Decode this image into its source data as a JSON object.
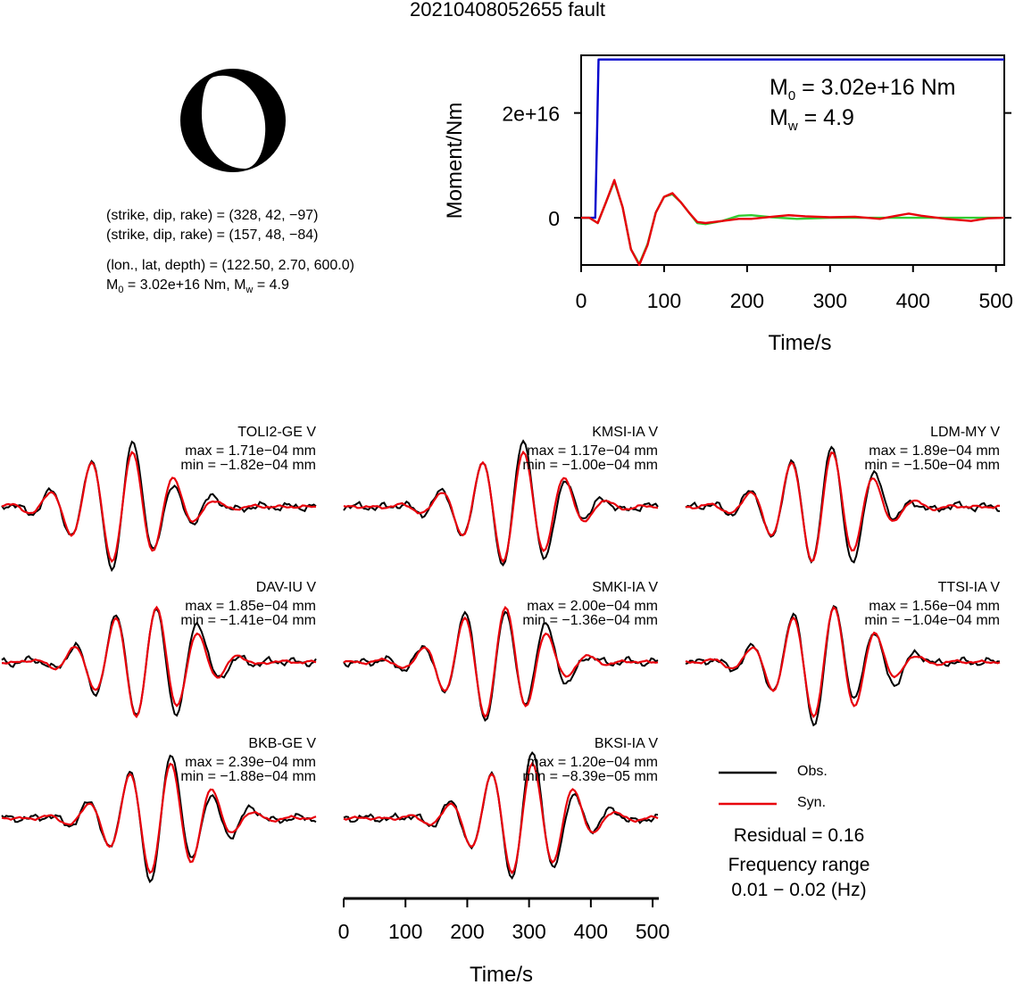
{
  "title": "20210408052655 fault",
  "solution": {
    "nodal1": "(strike, dip, rake) = (328, 42, −97)",
    "nodal2": "(strike, dip, rake) = (157, 48, −84)",
    "location": "(lon., lat, depth) = (122.50, 2.70, 600.0)",
    "moment_prefix": "M",
    "moment_sub": "0",
    "moment_mid": " = 3.02e+16 Nm, M",
    "mw_sub": "w",
    "mw_suffix": " = 4.9"
  },
  "moment_plot": {
    "m0_prefix": "M",
    "m0_sub": "0",
    "m0_value": " = 3.02e+16 Nm",
    "mw_prefix": "M",
    "mw_sub": "w",
    "mw_value": " = 4.9"
  },
  "legend": {
    "obs": "Obs.",
    "syn": "Syn.",
    "obs_color": "#000000",
    "syn_color": "#e8000b"
  },
  "residual": "Residual = 0.16",
  "freq_title": "Frequency range",
  "freq_value": "0.01 − 0.02 (Hz)",
  "chart_data": [
    {
      "type": "line",
      "id": "moment-rate",
      "title": "",
      "xlabel": "Time/s",
      "ylabel": "Moment/Nm",
      "xlim": [
        0,
        510
      ],
      "ylim": [
        -9000000000000000.0,
        3.1e+16
      ],
      "xticks": [
        0,
        100,
        200,
        300,
        400,
        500
      ],
      "yticks": [
        {
          "value": 0,
          "label": "0"
        },
        {
          "value": 2e+16,
          "label": "2e+16"
        }
      ],
      "series": [
        {
          "color": "#0000cc",
          "x": [
            0,
            17,
            19,
            21,
            510
          ],
          "y": [
            0,
            0,
            1.5e+16,
            3.02e+16,
            3.02e+16
          ]
        },
        {
          "color": "#33cc33",
          "x": [
            0,
            10,
            20,
            30,
            40,
            50,
            60,
            70,
            80,
            90,
            100,
            110,
            120,
            130,
            140,
            150,
            170,
            190,
            205,
            230,
            260,
            300,
            350,
            400,
            450,
            500,
            510
          ],
          "y": [
            0,
            0,
            -1000000000000000.0,
            3000000000000000.0,
            7000000000000000.0,
            2000000000000000.0,
            -6000000000000000.0,
            -8800000000000000.0,
            -5000000000000000.0,
            1000000000000000.0,
            4000000000000000.0,
            4500000000000000.0,
            3000000000000000.0,
            1000000000000000.0,
            -1000000000000000.0,
            -1200000000000000.0,
            -600000000000000.0,
            400000000000000.0,
            500000000000000.0,
            100000000000000.0,
            -200000000000000.0,
            0,
            0,
            0,
            0,
            0,
            0
          ]
        },
        {
          "color": "#e8000b",
          "x": [
            0,
            10,
            20,
            30,
            40,
            50,
            60,
            70,
            80,
            90,
            100,
            110,
            120,
            130,
            140,
            150,
            170,
            190,
            205,
            230,
            250,
            270,
            300,
            330,
            360,
            380,
            395,
            410,
            440,
            470,
            490,
            510
          ],
          "y": [
            0,
            0,
            -1000000000000000.0,
            3000000000000000.0,
            7200000000000000.0,
            2000000000000000.0,
            -6000000000000000.0,
            -9000000000000000.0,
            -5200000000000000.0,
            1000000000000000.0,
            4000000000000000.0,
            4700000000000000.0,
            3000000000000000.0,
            1000000000000000.0,
            -800000000000000.0,
            -1000000000000000.0,
            -600000000000000.0,
            -200000000000000.0,
            -200000000000000.0,
            200000000000000.0,
            500000000000000.0,
            300000000000000.0,
            100000000000000.0,
            200000000000000.0,
            -200000000000000.0,
            400000000000000.0,
            800000000000000.0,
            400000000000000.0,
            -200000000000000.0,
            -600000000000000.0,
            -100000000000000.0,
            0
          ]
        }
      ]
    },
    {
      "type": "line",
      "id": "waveforms",
      "xlabel": "Time/s",
      "xlim": [
        0,
        510
      ],
      "xticks": [
        0,
        100,
        200,
        300,
        400,
        500
      ],
      "stations": [
        {
          "name": "TOLI2-GE V",
          "max": "max = 1.71e−04 mm",
          "min": "min = −1.82e−04 mm"
        },
        {
          "name": "KMSI-IA V",
          "max": "max = 1.17e−04 mm",
          "min": "min = −1.00e−04 mm"
        },
        {
          "name": "LDM-MY V",
          "max": "max = 1.89e−04 mm",
          "min": "min = −1.50e−04 mm"
        },
        {
          "name": "DAV-IU V",
          "max": "max = 1.85e−04 mm",
          "min": "min = −1.41e−04 mm"
        },
        {
          "name": "SMKI-IA V",
          "max": "max = 2.00e−04 mm",
          "min": "min = −1.36e−04 mm"
        },
        {
          "name": "TTSI-IA V",
          "max": "max = 1.56e−04 mm",
          "min": "min = −1.04e−04 mm"
        },
        {
          "name": "BKB-GE V",
          "max": "max = 2.39e−04 mm",
          "min": "min = −1.88e−04 mm"
        },
        {
          "name": "BKSI-IA V",
          "max": "max = 1.20e−04 mm",
          "min": "min = −8.39e−05 mm"
        }
      ]
    }
  ]
}
